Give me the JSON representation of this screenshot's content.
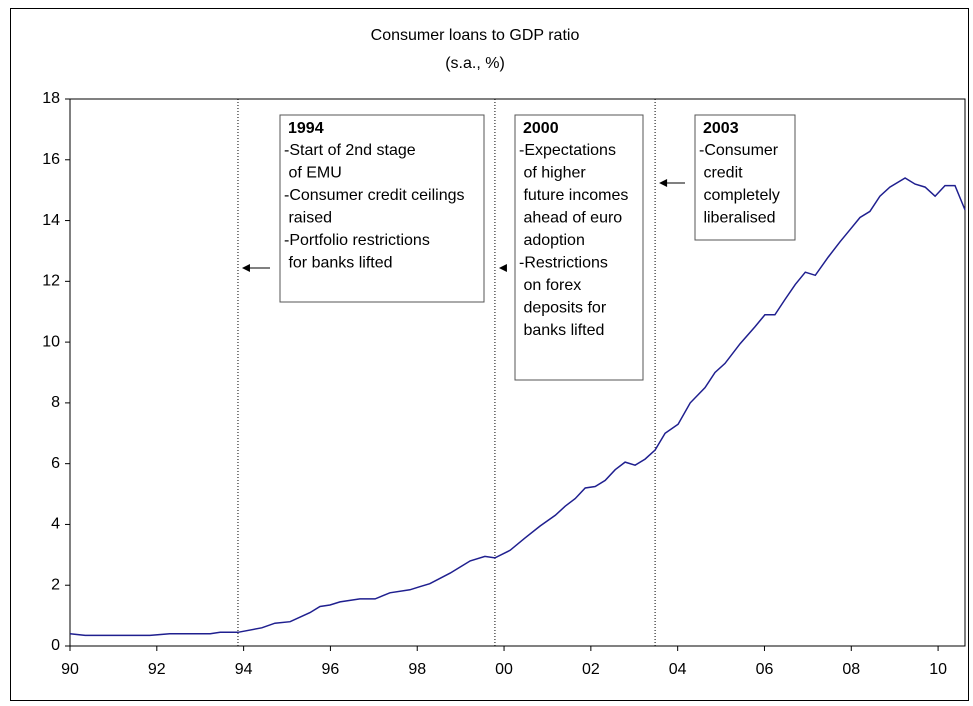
{
  "chart_data": {
    "type": "line",
    "title": "Consumer loans to GDP ratio",
    "subtitle": "(s.a., %)",
    "x": [
      1990.0,
      1990.35,
      1991.84,
      1992.3,
      1993.23,
      1993.46,
      1993.87,
      1994.42,
      1994.72,
      1995.07,
      1995.53,
      1995.76,
      1995.99,
      1996.22,
      1996.68,
      1997.03,
      1997.37,
      1997.83,
      1998.06,
      1998.29,
      1998.76,
      1998.99,
      1999.22,
      1999.56,
      1999.79,
      2000.14,
      2000.48,
      2000.83,
      2001.18,
      2001.41,
      2001.64,
      2001.87,
      2002.1,
      2002.33,
      2002.56,
      2002.79,
      2003.02,
      2003.25,
      2003.48,
      2003.71,
      2004.01,
      2004.29,
      2004.63,
      2004.86,
      2005.09,
      2005.44,
      2005.78,
      2006.01,
      2006.24,
      2006.47,
      2006.71,
      2006.94,
      2007.17,
      2007.47,
      2007.74,
      2007.97,
      2008.2,
      2008.43,
      2008.66,
      2008.89,
      2009.24,
      2009.47,
      2009.7,
      2009.93,
      2010.16,
      2010.39,
      2010.62
    ],
    "series": [
      {
        "color": "#1f1f8f",
        "values": [
          0.4,
          0.35,
          0.35,
          0.4,
          0.4,
          0.45,
          0.45,
          0.6,
          0.75,
          0.8,
          1.1,
          1.3,
          1.35,
          1.45,
          1.55,
          1.55,
          1.75,
          1.85,
          1.95,
          2.05,
          2.4,
          2.6,
          2.8,
          2.95,
          2.9,
          3.15,
          3.55,
          3.95,
          4.3,
          4.6,
          4.85,
          5.2,
          5.25,
          5.45,
          5.8,
          6.05,
          5.95,
          6.15,
          6.45,
          7.0,
          7.3,
          8.0,
          8.5,
          9.0,
          9.3,
          9.95,
          10.5,
          10.9,
          10.9,
          11.4,
          11.9,
          12.3,
          12.2,
          12.8,
          13.3,
          13.7,
          14.1,
          14.3,
          14.8,
          15.1,
          15.4,
          15.2,
          15.1,
          14.8,
          15.15,
          15.15,
          14.35
        ]
      }
    ],
    "xlim": [
      1990,
      2010.62
    ],
    "xticks": [
      {
        "value": 1990,
        "label": "90"
      },
      {
        "value": 1992,
        "label": "92"
      },
      {
        "value": 1994,
        "label": "94"
      },
      {
        "value": 1996,
        "label": "96"
      },
      {
        "value": 1998,
        "label": "98"
      },
      {
        "value": 2000,
        "label": "00"
      },
      {
        "value": 2002,
        "label": "02"
      },
      {
        "value": 2004,
        "label": "04"
      },
      {
        "value": 2006,
        "label": "06"
      },
      {
        "value": 2008,
        "label": "08"
      },
      {
        "value": 2010,
        "label": "10"
      }
    ],
    "ylim": [
      0,
      18
    ],
    "yticks": [
      0,
      2,
      4,
      6,
      8,
      10,
      12,
      14,
      16,
      18
    ],
    "grid": false,
    "annotations": [
      {
        "x": 1993.87,
        "title": "1994",
        "lines": [
          "-Start of 2nd stage",
          " of EMU",
          "-Consumer credit ceilings",
          " raised",
          "-Portfolio restrictions",
          " for banks lifted"
        ]
      },
      {
        "x": 1999.79,
        "title": "2000",
        "lines": [
          "-Expectations",
          " of higher",
          " future incomes",
          " ahead of euro",
          " adoption",
          "-Restrictions",
          " on forex",
          " deposits for",
          " banks lifted"
        ]
      },
      {
        "x": 2003.48,
        "title": "2003",
        "lines": [
          "-Consumer",
          " credit",
          " completely",
          " liberalised"
        ]
      }
    ]
  }
}
